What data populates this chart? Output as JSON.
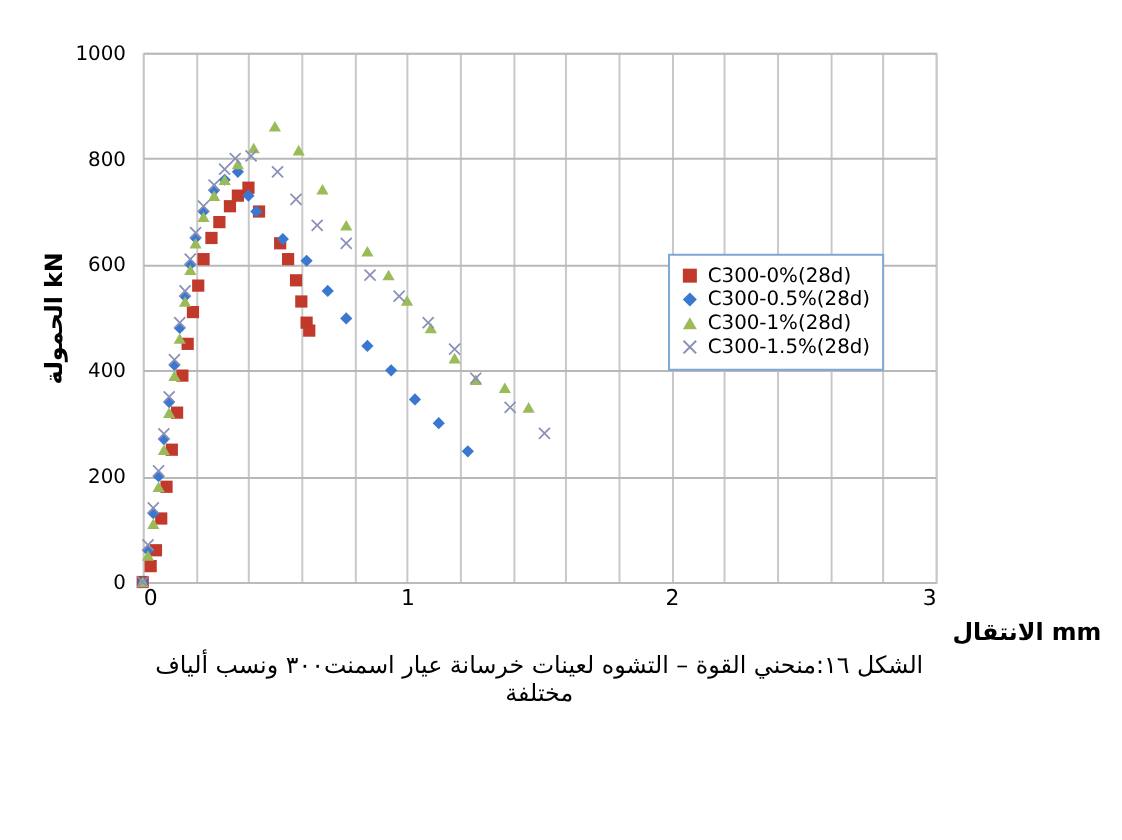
{
  "chart_data": {
    "type": "scatter",
    "xlabel": "الانتقال mm",
    "ylabel": "الحمولة kN",
    "annotations": [
      "الشكل ١٦:منحني القوة – التشوه لعينات خرسانة عيار اسمنت٣٠٠ ونسب ألياف مختلفة"
    ],
    "xlim": [
      0,
      3
    ],
    "ylim": [
      0,
      1000
    ],
    "xticks": [
      0,
      {
        "value": 0.2,
        "label": null
      },
      {
        "value": 0.4,
        "label": null
      },
      {
        "value": 0.6,
        "label": null
      },
      {
        "value": 0.8,
        "label": null
      },
      1,
      {
        "value": 1.2,
        "label": null
      },
      {
        "value": 1.4,
        "label": null
      },
      {
        "value": 1.6,
        "label": null
      },
      {
        "value": 1.8,
        "label": null
      },
      2,
      {
        "value": 2.2,
        "label": null
      },
      {
        "value": 2.4,
        "label": null
      },
      {
        "value": 2.6,
        "label": null
      },
      {
        "value": 2.8,
        "label": null
      },
      3
    ],
    "yticks": [
      0,
      200,
      400,
      600,
      800,
      1000
    ],
    "grid": true,
    "legend": "right",
    "series": [
      {
        "name": "C300-0%(28d)",
        "color": "#c0392b",
        "marker": "square",
        "x": [
          0,
          0.03,
          0.05,
          0.07,
          0.09,
          0.11,
          0.13,
          0.15,
          0.17,
          0.19,
          0.21,
          0.23,
          0.26,
          0.29,
          0.33,
          0.36,
          0.4,
          0.44,
          0.52,
          0.55,
          0.58,
          0.6,
          0.62,
          0.63
        ],
        "values": [
          0,
          30,
          60,
          120,
          180,
          250,
          320,
          390,
          450,
          510,
          560,
          610,
          650,
          680,
          710,
          730,
          745,
          700,
          640,
          610,
          570,
          530,
          490,
          475
        ]
      },
      {
        "name": "C300-0.5%(28d)",
        "color": "#3a78d0",
        "marker": "diamond",
        "x": [
          0,
          0.02,
          0.04,
          0.06,
          0.08,
          0.1,
          0.12,
          0.14,
          0.16,
          0.18,
          0.2,
          0.23,
          0.27,
          0.31,
          0.36,
          0.4,
          0.43,
          0.53,
          0.62,
          0.7,
          0.77,
          0.85,
          0.94,
          1.03,
          1.12,
          1.23
        ],
        "values": [
          0,
          60,
          130,
          200,
          270,
          340,
          410,
          480,
          540,
          600,
          650,
          700,
          740,
          760,
          775,
          730,
          700,
          648,
          607,
          550,
          498,
          446,
          400,
          345,
          300,
          247
        ]
      },
      {
        "name": "C300-1%(28d)",
        "color": "#9bbb59",
        "marker": "triangle",
        "x": [
          0,
          0.02,
          0.04,
          0.06,
          0.08,
          0.1,
          0.12,
          0.14,
          0.16,
          0.18,
          0.2,
          0.23,
          0.27,
          0.31,
          0.36,
          0.42,
          0.5,
          0.59,
          0.68,
          0.77,
          0.85,
          0.93,
          1.0,
          1.09,
          1.18,
          1.26,
          1.37,
          1.46
        ],
        "values": [
          0,
          50,
          110,
          180,
          250,
          320,
          390,
          460,
          530,
          590,
          640,
          690,
          730,
          760,
          790,
          820,
          861,
          816,
          742,
          674,
          625,
          580,
          532,
          480,
          423,
          382,
          367,
          330
        ]
      },
      {
        "name": "C300-1.5%(28d)",
        "color": "#8a8fb8",
        "marker": "cross",
        "x": [
          0,
          0.02,
          0.04,
          0.06,
          0.08,
          0.1,
          0.12,
          0.14,
          0.16,
          0.18,
          0.2,
          0.23,
          0.27,
          0.31,
          0.35,
          0.41,
          0.51,
          0.58,
          0.66,
          0.77,
          0.86,
          0.97,
          1.08,
          1.18,
          1.26,
          1.39,
          1.52
        ],
        "values": [
          0,
          70,
          140,
          210,
          280,
          350,
          420,
          490,
          550,
          610,
          660,
          710,
          750,
          780,
          800,
          805,
          775,
          723,
          674,
          640,
          580,
          540,
          490,
          440,
          385,
          330,
          281
        ]
      }
    ]
  }
}
